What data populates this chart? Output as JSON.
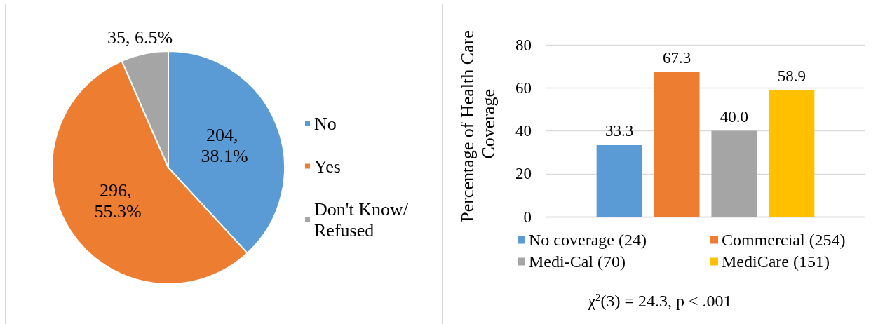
{
  "chart_data": [
    {
      "type": "pie",
      "categories": [
        "No",
        "Yes",
        "Don't Know/Refused"
      ],
      "values": [
        204,
        296,
        35
      ],
      "colors": [
        "#5b9bd5",
        "#ed7d31",
        "#a5a5a5"
      ],
      "value_labels": [
        "204, 38.1%",
        "296, 55.3%",
        "35, 6.5%"
      ],
      "legend": "right"
    },
    {
      "type": "bar",
      "ylabel": "Percentage of Health Care Coverage",
      "categories": [
        null
      ],
      "series": [
        {
          "name": "No coverage (24)",
          "color": "#5b9bd5",
          "values": [
            33.3
          ],
          "value_labels": [
            "33.3"
          ]
        },
        {
          "name": "Commercial (254)",
          "color": "#ed7d31",
          "values": [
            67.3
          ],
          "value_labels": [
            "67.3"
          ]
        },
        {
          "name": "Medi-Cal (70)",
          "color": "#a5a5a5",
          "values": [
            40.0
          ],
          "value_labels": [
            "40.0"
          ]
        },
        {
          "name": "MediCare (151)",
          "color": "#ffc000",
          "values": [
            58.9
          ],
          "value_labels": [
            "58.9"
          ]
        }
      ],
      "ylim": [
        0,
        80
      ],
      "yticks": [
        0,
        20,
        40,
        60,
        80
      ],
      "grid": "y",
      "legend": "bottom",
      "annotations": [
        "χ$^{2}$(3) = 24.3, p < .001"
      ]
    }
  ]
}
